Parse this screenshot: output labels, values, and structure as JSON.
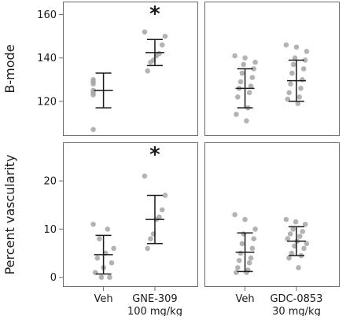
{
  "chart_data": {
    "type": "scatter",
    "layout": "2x2 facet grid, jittered points with mean ± SD bars",
    "rows": [
      {
        "ylabel": "B-mode",
        "ylim": [
          104,
          166
        ],
        "yticks": [
          120,
          140,
          160
        ],
        "tick_labels": [
          "120",
          "140",
          "160"
        ]
      },
      {
        "ylabel": "Percent vascularity",
        "ylim": [
          -2,
          28
        ],
        "yticks": [
          0,
          10,
          20
        ],
        "tick_labels": [
          "0",
          "10",
          "20"
        ]
      }
    ],
    "columns": [
      {
        "categories": [
          "Veh",
          "GNE-309\n100 mg/kg"
        ],
        "cat_lines": [
          [
            "Veh"
          ],
          [
            "GNE-309",
            "100 mg/kg"
          ]
        ]
      },
      {
        "categories": [
          "Veh",
          "GDC-0853\n30 mg/kg"
        ],
        "cat_lines": [
          [
            "Veh"
          ],
          [
            "GDC-0853",
            "30 mg/kg"
          ]
        ]
      }
    ],
    "significance_marker": "*",
    "panels": [
      {
        "row": 0,
        "col": 0,
        "groups": [
          {
            "category": "Veh",
            "mean": 125,
            "sd_low": 117,
            "sd_high": 133,
            "points": [
              128,
              129,
              130,
              124,
              123,
              125,
              107
            ]
          },
          {
            "category": "GNE-309\n100 mg/kg",
            "mean": 142.5,
            "sd_low": 136.5,
            "sd_high": 148.5,
            "points": [
              152,
              150,
              146,
              142,
              141,
              139,
              138,
              134
            ],
            "significant": true
          }
        ]
      },
      {
        "row": 0,
        "col": 1,
        "groups": [
          {
            "category": "Veh",
            "mean": 126,
            "sd_low": 117,
            "sd_high": 135,
            "points": [
              141,
              140,
              138,
              137,
              135,
              133,
              131,
              129,
              127,
              126,
              124,
              122,
              117,
              114,
              111
            ]
          },
          {
            "category": "GDC-0853\n30 mg/kg",
            "mean": 129.5,
            "sd_low": 120,
            "sd_high": 139,
            "points": [
              146,
              145,
              143,
              140,
              139,
              137,
              135,
              133,
              130,
              128,
              126,
              124,
              122,
              121,
              119
            ]
          }
        ]
      },
      {
        "row": 1,
        "col": 0,
        "groups": [
          {
            "category": "Veh",
            "mean": 4.7,
            "sd_low": 0.7,
            "sd_high": 8.7,
            "points": [
              11,
              10,
              8,
              6,
              5,
              4,
              3,
              2,
              1,
              0,
              0
            ]
          },
          {
            "category": "GNE-309\n100 mg/kg",
            "mean": 12,
            "sd_low": 7,
            "sd_high": 17,
            "points": [
              21,
              17,
              14,
              12.5,
              12,
              9,
              8,
              6
            ],
            "significant": true
          }
        ]
      },
      {
        "row": 1,
        "col": 1,
        "groups": [
          {
            "category": "Veh",
            "mean": 5.2,
            "sd_low": 1.2,
            "sd_high": 9.2,
            "points": [
              13,
              12,
              10,
              9,
              8,
              7,
              6,
              5,
              4,
              3.5,
              3,
              2,
              1.5,
              1,
              1
            ]
          },
          {
            "category": "GDC-0853\n30 mg/kg",
            "mean": 7.5,
            "sd_low": 4.5,
            "sd_high": 10.5,
            "points": [
              12,
              11.5,
              11,
              10,
              9.5,
              9,
              8.5,
              8,
              7.5,
              7,
              6.5,
              6,
              5,
              4.5,
              4,
              2
            ]
          }
        ]
      }
    ]
  },
  "colors": {
    "point": "#a6a6a6",
    "error_bar": "#1a1a1a",
    "panel_border": "#6b6b6b",
    "text": "#1a1a1a"
  }
}
